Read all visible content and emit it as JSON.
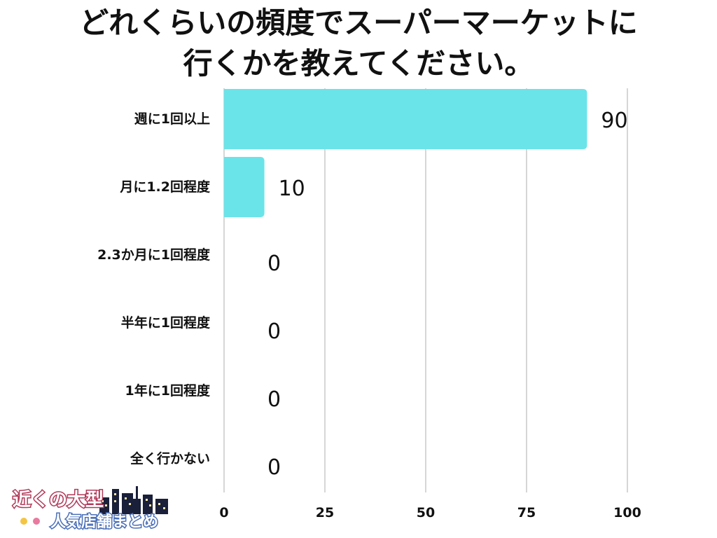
{
  "chart_data": {
    "type": "bar",
    "orientation": "horizontal",
    "title_lines": [
      "どれくらいの頻度でスーパーマーケットに",
      "行くかを教えてください。"
    ],
    "categories": [
      "週に1回以上",
      "月に1.2回程度",
      "2.3か月に1回程度",
      "半年に1回程度",
      "1年に1回程度",
      "全く行かない"
    ],
    "values": [
      90,
      10,
      0,
      0,
      0,
      0
    ],
    "value_labels": [
      "90",
      "10",
      "0",
      "0",
      "0",
      "0"
    ],
    "xlim": [
      0,
      100
    ],
    "x_ticks": [
      0,
      25,
      50,
      75,
      100
    ],
    "grid": true,
    "bar_color": "#6ae4e9",
    "grid_color": "#d6d6d6"
  },
  "logo": {
    "line1": "近くの大型",
    "line2": "人気店舗まとめ"
  }
}
